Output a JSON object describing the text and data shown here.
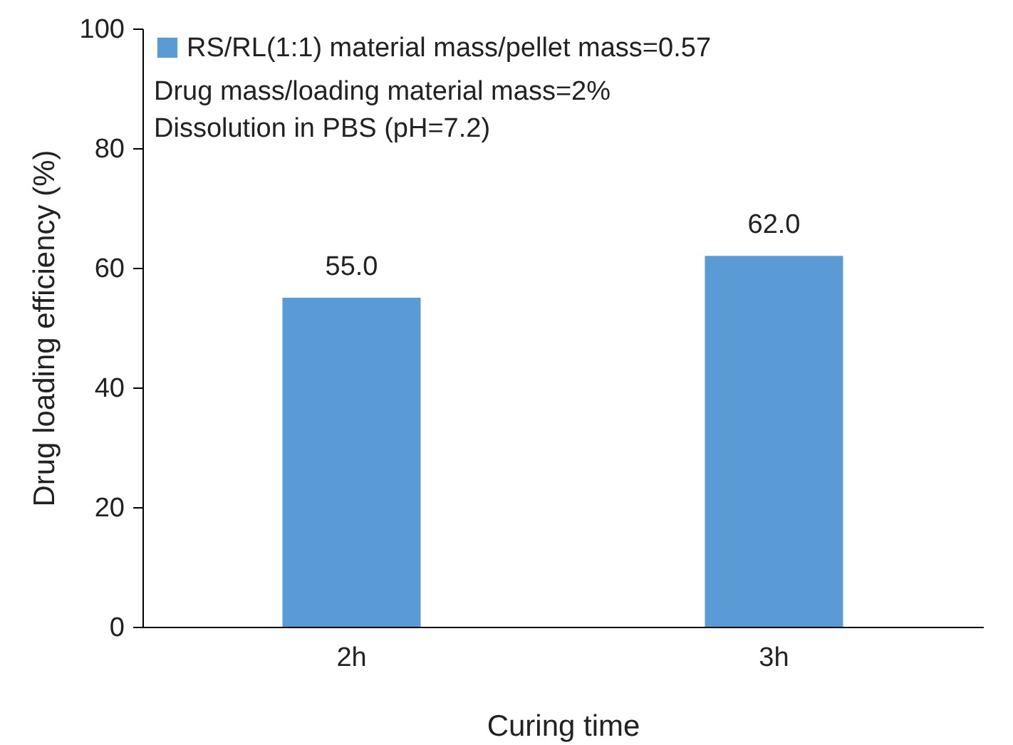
{
  "chart_data": {
    "type": "bar",
    "xlabel": "Curing time",
    "ylabel": "Drug loading efficiency (%)",
    "categories": [
      "2h",
      "3h"
    ],
    "series": [
      {
        "name": "RS/RL(1:1) material mass/pellet mass=0.57",
        "color": "#5b9bd5",
        "values": [
          55,
          62
        ],
        "value_labels": [
          "55.0",
          "62.0"
        ]
      }
    ],
    "ylim": [
      0,
      100
    ],
    "yticks": [
      0,
      20,
      40,
      60,
      80,
      100
    ],
    "legend": "top left",
    "annotations": [
      "Drug mass/loading material mass=2%",
      "Dissolution in PBS (pH=7.2)"
    ]
  }
}
